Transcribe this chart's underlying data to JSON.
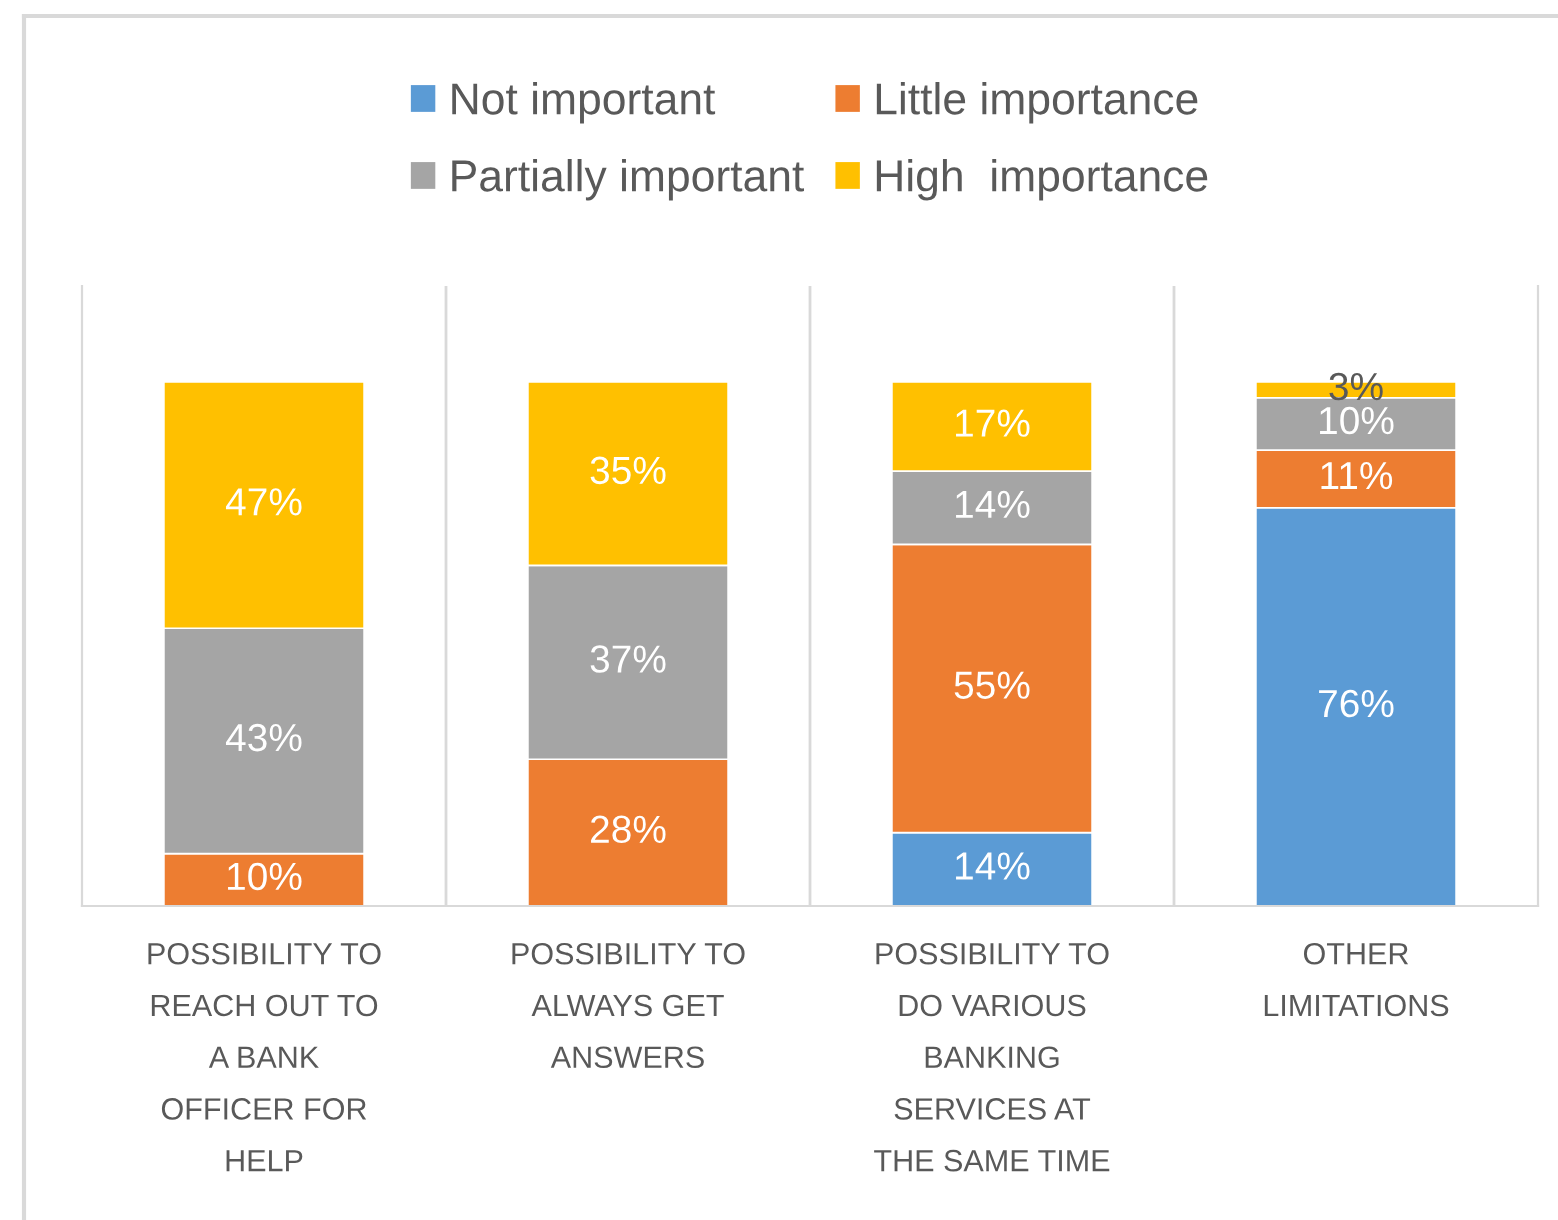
{
  "chart_data": {
    "type": "bar",
    "stacked": true,
    "categories": [
      "POSSIBILITY TO REACH OUT TO A BANK OFFICER FOR HELP",
      "POSSIBILITY TO ALWAYS GET ANSWERS",
      "POSSIBILITY TO DO VARIOUS BANKING SERVICES AT THE SAME TIME",
      "OTHER LIMITATIONS"
    ],
    "series": [
      {
        "name": "Not important",
        "color": "#5b9bd5",
        "values": [
          null,
          null,
          14,
          76
        ],
        "value_labels": [
          null,
          null,
          "14%",
          "76%"
        ]
      },
      {
        "name": "Little importance",
        "color": "#ed7d31",
        "values": [
          10,
          28,
          55,
          11
        ],
        "value_labels": [
          "10%",
          "28%",
          "55%",
          "11%"
        ]
      },
      {
        "name": "Partially important",
        "color": "#a5a5a5",
        "values": [
          43,
          37,
          14,
          10
        ],
        "value_labels": [
          "43%",
          "37%",
          "14%",
          "10%"
        ]
      },
      {
        "name": "High  importance",
        "color": "#ffc000",
        "values": [
          47,
          35,
          17,
          3
        ],
        "value_labels": [
          "47%",
          "35%",
          "17%",
          "3%"
        ]
      }
    ],
    "legend": "top",
    "grid": "x"
  }
}
